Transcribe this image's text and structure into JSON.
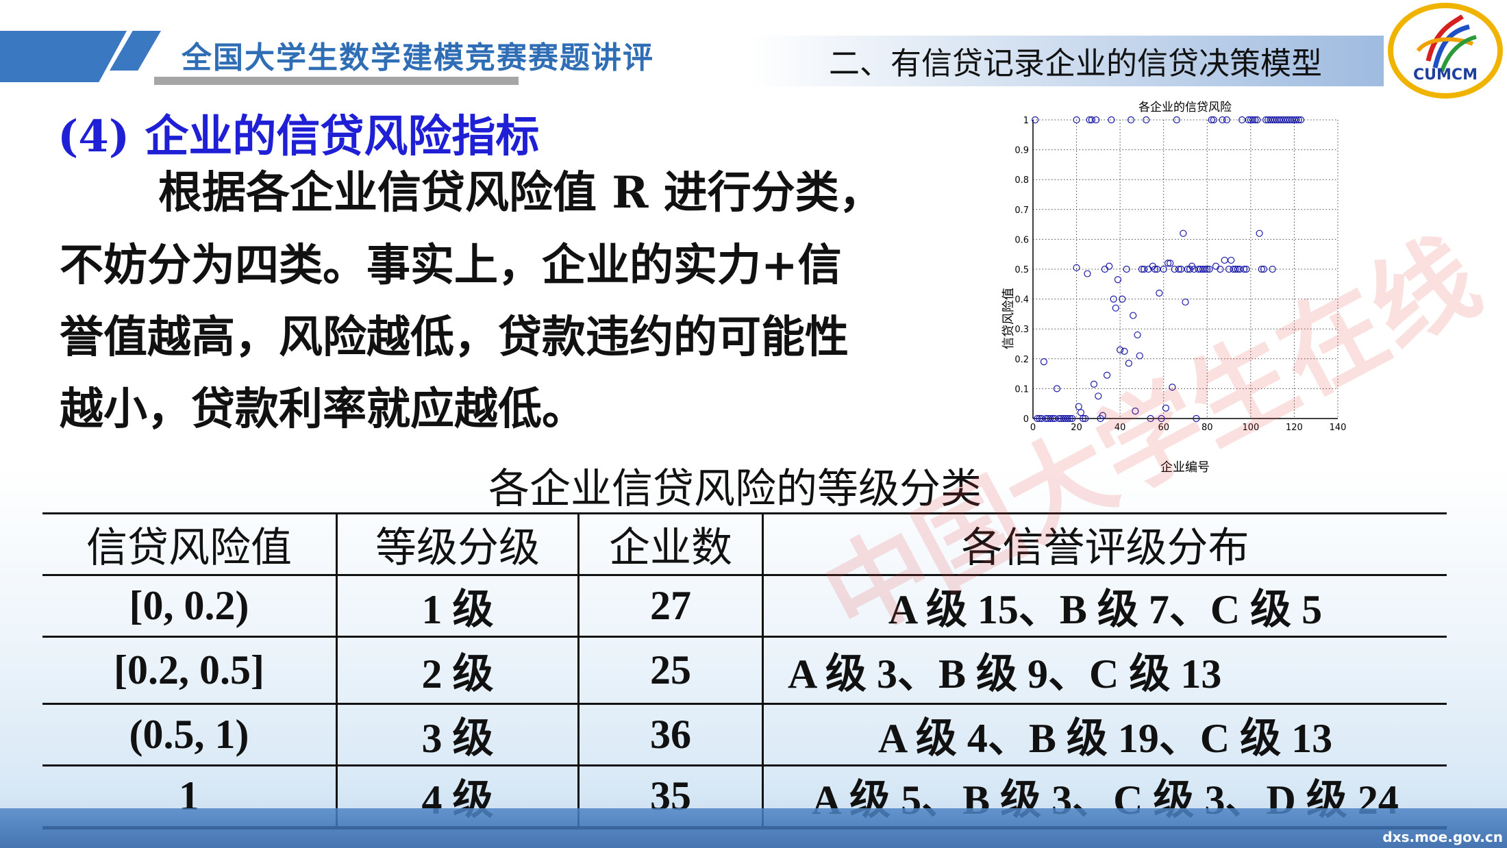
{
  "header": {
    "course_title": "全国大学生数学建模竞赛赛题讲评",
    "section_title": "二、有信贷记录企业的信贷决策模型",
    "logo_text": "CUMCM"
  },
  "content": {
    "subtitle": "(4) 企业的信贷风险指标",
    "paragraph": [
      "根据各企业信贷风险值 R 进行分类，",
      "不妨分为四类。事实上，企业的实力+信",
      "誉值越高，风险越低，贷款违约的可能性",
      "越小，贷款利率就应越低。"
    ]
  },
  "table": {
    "caption": "各企业信贷风险的等级分类",
    "headers": [
      "信贷风险值",
      "等级分级",
      "企业数",
      "各信誉评级分布"
    ],
    "rows": [
      [
        "[0, 0.2)",
        "1 级",
        "27",
        "A 级 15、B 级 7、C 级 5"
      ],
      [
        "[0.2, 0.5]",
        "2 级",
        "25",
        "A 级 3、B 级 9、C 级 13"
      ],
      [
        "(0.5, 1)",
        "3 级",
        "36",
        "A 级 4、B 级 19、C 级 13"
      ],
      [
        "1",
        "4 级",
        "35",
        "A 级 5、B 级 3、C 级 3、D 级 24"
      ]
    ]
  },
  "footer": {
    "url": "dxs.moe.gov.cn",
    "watermark": "中国大学生在线"
  },
  "chart_data": {
    "type": "scatter",
    "title": "各企业的信贷风险",
    "xlabel": "企业编号",
    "ylabel": "信贷风险值",
    "xlim": [
      0,
      140
    ],
    "ylim": [
      0,
      1
    ],
    "xticks": [
      0,
      20,
      40,
      60,
      80,
      100,
      120,
      140
    ],
    "yticks": [
      0,
      0.1,
      0.2,
      0.3,
      0.4,
      0.5,
      0.6,
      0.7,
      0.8,
      0.9,
      1
    ],
    "grid": true,
    "marker": "open-circle",
    "color": "#1a1aa8",
    "points": [
      [
        1,
        1
      ],
      [
        20,
        1
      ],
      [
        26,
        1
      ],
      [
        27,
        1
      ],
      [
        29,
        1
      ],
      [
        36,
        1
      ],
      [
        45,
        1
      ],
      [
        52,
        1
      ],
      [
        66,
        1
      ],
      [
        82,
        1
      ],
      [
        83,
        1
      ],
      [
        87,
        1
      ],
      [
        89,
        1
      ],
      [
        96,
        1
      ],
      [
        99,
        1
      ],
      [
        100,
        1
      ],
      [
        101,
        1
      ],
      [
        102,
        1
      ],
      [
        103,
        1
      ],
      [
        107,
        1
      ],
      [
        108,
        1
      ],
      [
        109,
        1
      ],
      [
        110,
        1
      ],
      [
        111,
        1
      ],
      [
        112,
        1
      ],
      [
        113,
        1
      ],
      [
        114,
        1
      ],
      [
        115,
        1
      ],
      [
        116,
        1
      ],
      [
        117,
        1
      ],
      [
        118,
        1
      ],
      [
        119,
        1
      ],
      [
        120,
        1
      ],
      [
        121,
        1
      ],
      [
        122,
        1
      ],
      [
        123,
        1
      ],
      [
        20,
        0.505
      ],
      [
        25,
        0.485
      ],
      [
        33,
        0.5
      ],
      [
        35,
        0.51
      ],
      [
        43,
        0.5
      ],
      [
        50,
        0.5
      ],
      [
        51,
        0.5
      ],
      [
        53,
        0.5
      ],
      [
        55,
        0.51
      ],
      [
        56,
        0.5
      ],
      [
        57,
        0.5
      ],
      [
        60,
        0.5
      ],
      [
        62,
        0.52
      ],
      [
        63,
        0.52
      ],
      [
        65,
        0.5
      ],
      [
        67,
        0.5
      ],
      [
        68,
        0.5
      ],
      [
        71,
        0.5
      ],
      [
        72,
        0.5
      ],
      [
        73,
        0.51
      ],
      [
        74,
        0.5
      ],
      [
        76,
        0.5
      ],
      [
        77,
        0.5
      ],
      [
        78,
        0.5
      ],
      [
        79,
        0.5
      ],
      [
        80,
        0.5
      ],
      [
        81,
        0.5
      ],
      [
        84,
        0.51
      ],
      [
        86,
        0.5
      ],
      [
        88,
        0.53
      ],
      [
        90,
        0.5
      ],
      [
        91,
        0.53
      ],
      [
        92,
        0.5
      ],
      [
        93,
        0.5
      ],
      [
        94,
        0.5
      ],
      [
        95,
        0.5
      ],
      [
        97,
        0.5
      ],
      [
        98,
        0.5
      ],
      [
        105,
        0.5
      ],
      [
        106,
        0.5
      ],
      [
        110,
        0.5
      ],
      [
        69,
        0.62
      ],
      [
        104,
        0.62
      ],
      [
        5,
        0.19
      ],
      [
        11,
        0.1
      ],
      [
        21,
        0.04
      ],
      [
        22,
        0.02
      ],
      [
        28,
        0.115
      ],
      [
        30,
        0.075
      ],
      [
        32,
        0.01
      ],
      [
        34,
        0.145
      ],
      [
        37,
        0.4
      ],
      [
        38,
        0.37
      ],
      [
        39,
        0.465
      ],
      [
        40,
        0.23
      ],
      [
        41,
        0.4
      ],
      [
        42,
        0.225
      ],
      [
        44,
        0.185
      ],
      [
        46,
        0.345
      ],
      [
        47,
        0.025
      ],
      [
        48,
        0.28
      ],
      [
        49,
        0.21
      ],
      [
        58,
        0.42
      ],
      [
        61,
        0.035
      ],
      [
        64,
        0.105
      ],
      [
        70,
        0.39
      ],
      [
        2,
        0
      ],
      [
        3,
        0
      ],
      [
        4,
        0
      ],
      [
        6,
        0
      ],
      [
        7,
        0
      ],
      [
        8,
        0
      ],
      [
        9,
        0
      ],
      [
        10,
        0
      ],
      [
        12,
        0
      ],
      [
        13,
        0
      ],
      [
        14,
        0
      ],
      [
        15,
        0
      ],
      [
        16,
        0
      ],
      [
        17,
        0
      ],
      [
        18,
        0
      ],
      [
        23,
        0
      ],
      [
        24,
        0
      ],
      [
        31,
        0
      ],
      [
        54,
        0
      ],
      [
        59,
        0
      ],
      [
        75,
        0
      ]
    ]
  }
}
